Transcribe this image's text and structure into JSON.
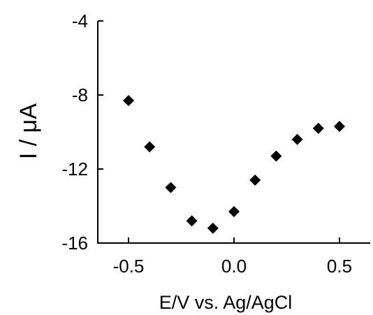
{
  "chart_data": {
    "type": "scatter",
    "title": "",
    "xlabel": "E/V vs. Ag/AgCl",
    "ylabel": "I / μA",
    "xlim": [
      -0.6,
      0.6
    ],
    "ylim": [
      -16,
      -4
    ],
    "xticks": [
      -0.5,
      0.0,
      0.5
    ],
    "xtick_labels": [
      "-0.5",
      "0.0",
      "0.5"
    ],
    "yticks": [
      -4,
      -8,
      -12,
      -16
    ],
    "ytick_labels": [
      "-4",
      "-8",
      "-12",
      "-16"
    ],
    "grid": false,
    "marker": "diamond",
    "marker_color": "#000000",
    "x": [
      -0.5,
      -0.4,
      -0.3,
      -0.2,
      -0.1,
      0.0,
      0.1,
      0.2,
      0.3,
      0.4,
      0.5
    ],
    "y": [
      -8.3,
      -10.8,
      -13.0,
      -14.8,
      -15.2,
      -14.3,
      -12.6,
      -11.3,
      -10.4,
      -9.8,
      -9.7
    ]
  }
}
